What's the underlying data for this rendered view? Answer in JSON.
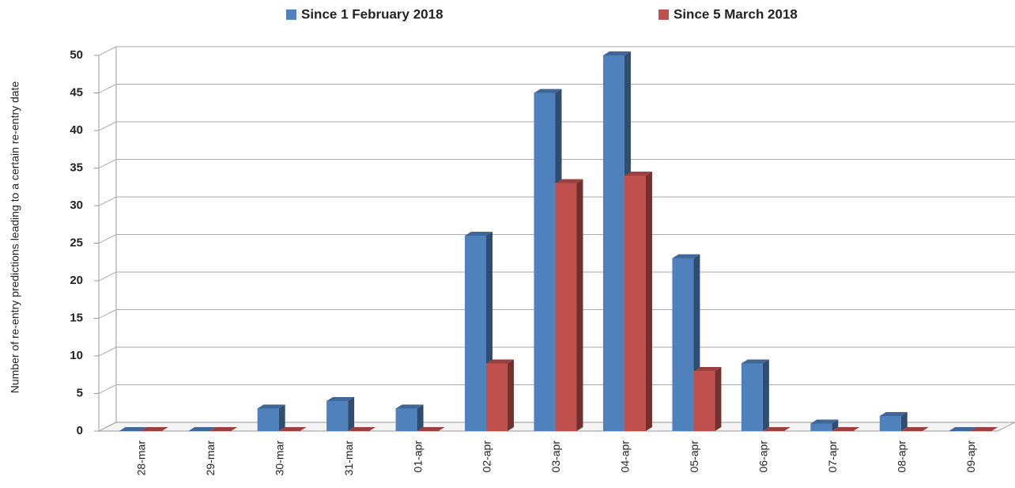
{
  "chart_data": {
    "type": "bar",
    "y_label": "Number of re-entry predictions leading to a certain re-entry date",
    "categories": [
      "28-mar",
      "29-mar",
      "30-mar",
      "31-mar",
      "01-apr",
      "02-apr",
      "03-apr",
      "04-apr",
      "05-apr",
      "06-apr",
      "07-apr",
      "08-apr",
      "09-apr"
    ],
    "series": [
      {
        "name": "Since 1 February 2018",
        "color": "#4f81bd",
        "values": [
          0,
          0,
          3,
          4,
          3,
          26,
          45,
          50,
          23,
          9,
          1,
          2,
          0
        ]
      },
      {
        "name": "Since 5 March 2018",
        "color": "#c0504d",
        "values": [
          0,
          0,
          0,
          0,
          0,
          9,
          33,
          34,
          8,
          0,
          0,
          0,
          0
        ]
      }
    ],
    "ylim": [
      0,
      50
    ],
    "yticks": [
      0,
      5,
      10,
      15,
      20,
      25,
      30,
      35,
      40,
      45,
      50
    ],
    "grid": true,
    "legend": "top"
  }
}
